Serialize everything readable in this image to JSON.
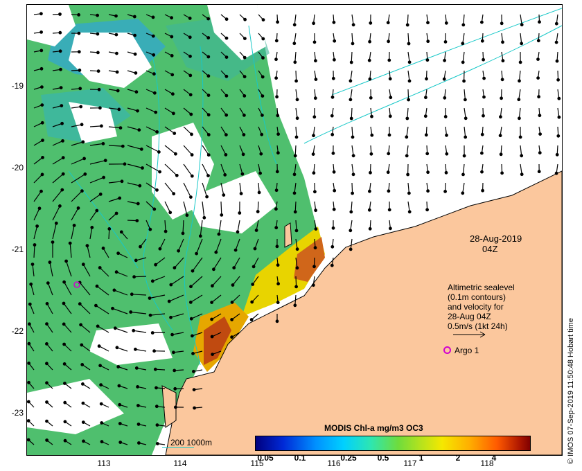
{
  "map": {
    "y_axis_labels": [
      "-19",
      "-20",
      "-21",
      "-22",
      "-23"
    ],
    "x_axis_labels": [
      "113",
      "114",
      "115",
      "116",
      "117",
      "118"
    ],
    "date_label": "28-Aug-2019",
    "time_label": "04Z",
    "info_lines": [
      "Altimetric sealevel",
      "(0.1m contours)",
      "and velocity for",
      "28-Aug 04Z",
      "0.5m/s (1kt 24h)"
    ],
    "argo_label": "Argo 1",
    "contour_legend": "200  1000m",
    "credit": "© IMOS 07-Sep-2019 11:50:48 Hobart time",
    "colors": {
      "land": "#fbc79d",
      "contour": "#17c8c8",
      "argo": "#d000d0",
      "chl_low": "#00007f",
      "chl_high": "#800000"
    }
  },
  "colorbar": {
    "title": "MODIS Chl-a mg/m3 OC3",
    "ticks": [
      "0.05",
      "0.1",
      "0.25",
      "0.5",
      "1",
      "2",
      "4"
    ]
  }
}
